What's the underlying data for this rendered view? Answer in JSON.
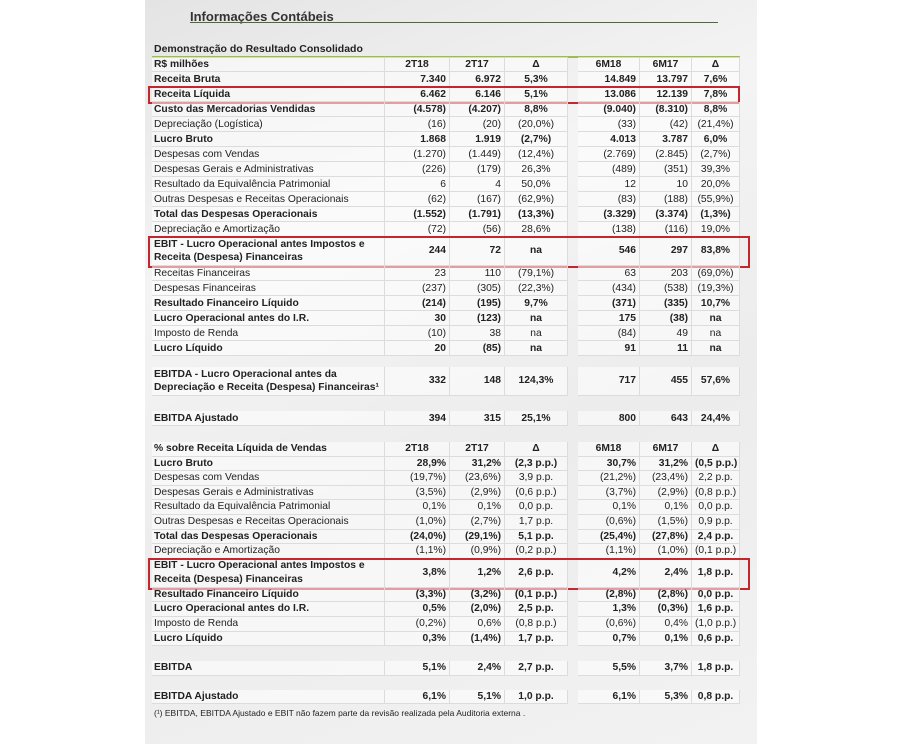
{
  "title": "Informações Contábeis",
  "subtitle": "Demonstração do Resultado Consolidado",
  "colors": {
    "highlight": "#c4262e",
    "accent_line": "#9bbf4a"
  },
  "sections": [
    {
      "header": [
        "R$ milhões",
        "2T18",
        "2T17",
        "Δ",
        "6M18",
        "6M17",
        "Δ"
      ],
      "rows": [
        {
          "label": "Receita Bruta",
          "bold": true,
          "values": [
            "7.340",
            "6.972",
            "5,3%",
            "14.849",
            "13.797",
            "7,6%"
          ]
        },
        {
          "label": "Receita Líquida",
          "bold": true,
          "highlight": true,
          "values": [
            "6.462",
            "6.146",
            "5,1%",
            "13.086",
            "12.139",
            "7,8%"
          ]
        },
        {
          "label": "Custo das Mercadorias Vendidas",
          "bold": true,
          "values": [
            "(4.578)",
            "(4.207)",
            "8,8%",
            "(9.040)",
            "(8.310)",
            "8,8%"
          ]
        },
        {
          "label": "Depreciação (Logística)",
          "values": [
            "(16)",
            "(20)",
            "(20,0%)",
            "(33)",
            "(42)",
            "(21,4%)"
          ]
        },
        {
          "label": "Lucro Bruto",
          "bold": true,
          "values": [
            "1.868",
            "1.919",
            "(2,7%)",
            "4.013",
            "3.787",
            "6,0%"
          ]
        },
        {
          "label": "Despesas com Vendas",
          "values": [
            "(1.270)",
            "(1.449)",
            "(12,4%)",
            "(2.769)",
            "(2.845)",
            "(2,7%)"
          ]
        },
        {
          "label": "Despesas Gerais e Administrativas",
          "values": [
            "(226)",
            "(179)",
            "26,3%",
            "(489)",
            "(351)",
            "39,3%"
          ]
        },
        {
          "label": "Resultado da Equivalência Patrimonial",
          "values": [
            "6",
            "4",
            "50,0%",
            "12",
            "10",
            "20,0%"
          ]
        },
        {
          "label": "Outras Despesas e Receitas Operacionais",
          "values": [
            "(62)",
            "(167)",
            "(62,9%)",
            "(83)",
            "(188)",
            "(55,9%)"
          ]
        },
        {
          "label": "Total das Despesas Operacionais",
          "bold": true,
          "values": [
            "(1.552)",
            "(1.791)",
            "(13,3%)",
            "(3.329)",
            "(3.374)",
            "(1,3%)"
          ]
        },
        {
          "label": "Depreciação e Amortização",
          "values": [
            "(72)",
            "(56)",
            "28,6%",
            "(138)",
            "(116)",
            "19,0%"
          ]
        },
        {
          "label": "EBIT - Lucro Operacional antes Impostos e Receita (Despesa) Financeiras",
          "bold": true,
          "double": true,
          "highlight": true,
          "values": [
            "244",
            "72",
            "na",
            "546",
            "297",
            "83,8%"
          ]
        },
        {
          "label": "Receitas Financeiras",
          "values": [
            "23",
            "110",
            "(79,1%)",
            "63",
            "203",
            "(69,0%)"
          ]
        },
        {
          "label": "Despesas Financeiras",
          "values": [
            "(237)",
            "(305)",
            "(22,3%)",
            "(434)",
            "(538)",
            "(19,3%)"
          ]
        },
        {
          "label": "Resultado Financeiro Líquido",
          "bold": true,
          "values": [
            "(214)",
            "(195)",
            "9,7%",
            "(371)",
            "(335)",
            "10,7%"
          ]
        },
        {
          "label": "Lucro Operacional antes do I.R.",
          "bold": true,
          "values": [
            "30",
            "(123)",
            "na",
            "175",
            "(38)",
            "na"
          ]
        },
        {
          "label": "Imposto de Renda",
          "values": [
            "(10)",
            "38",
            "na",
            "(84)",
            "49",
            "na"
          ]
        },
        {
          "label": "Lucro Líquido",
          "bold": true,
          "values": [
            "20",
            "(85)",
            "na",
            "91",
            "11",
            "na"
          ]
        }
      ]
    },
    {
      "rows": [
        {
          "label": "EBITDA - Lucro Operacional antes da Depreciação e Receita (Despesa) Financeiras¹",
          "bold": true,
          "double": true,
          "values": [
            "332",
            "148",
            "124,3%",
            "717",
            "455",
            "57,6%"
          ]
        }
      ]
    },
    {
      "rows": [
        {
          "label": "EBITDA Ajustado",
          "bold": true,
          "values": [
            "394",
            "315",
            "25,1%",
            "800",
            "643",
            "24,4%"
          ]
        }
      ]
    },
    {
      "pct": true,
      "header": [
        "% sobre Receita Líquida de Vendas",
        "2T18",
        "2T17",
        "Δ",
        "6M18",
        "6M17",
        "Δ"
      ],
      "rows": [
        {
          "label": "Lucro Bruto",
          "bold": true,
          "values": [
            "28,9%",
            "31,2%",
            "(2,3 p.p.)",
            "30,7%",
            "31,2%",
            "(0,5 p.p.)"
          ]
        },
        {
          "label": "Despesas com Vendas",
          "values": [
            "(19,7%)",
            "(23,6%)",
            "3,9 p.p.",
            "(21,2%)",
            "(23,4%)",
            "2,2 p.p."
          ]
        },
        {
          "label": "Despesas Gerais e Administrativas",
          "values": [
            "(3,5%)",
            "(2,9%)",
            "(0,6 p.p.)",
            "(3,7%)",
            "(2,9%)",
            "(0,8 p.p.)"
          ]
        },
        {
          "label": "Resultado da Equivalência Patrimonial",
          "values": [
            "0,1%",
            "0,1%",
            "0,0 p.p.",
            "0,1%",
            "0,1%",
            "0,0 p.p."
          ]
        },
        {
          "label": "Outras Despesas e Receitas Operacionais",
          "values": [
            "(1,0%)",
            "(2,7%)",
            "1,7 p.p.",
            "(0,6%)",
            "(1,5%)",
            "0,9 p.p."
          ]
        },
        {
          "label": "Total das Despesas Operacionais",
          "bold": true,
          "values": [
            "(24,0%)",
            "(29,1%)",
            "5,1 p.p.",
            "(25,4%)",
            "(27,8%)",
            "2,4 p.p."
          ]
        },
        {
          "label": "Depreciação e Amortização",
          "values": [
            "(1,1%)",
            "(0,9%)",
            "(0,2 p.p.)",
            "(1,1%)",
            "(1,0%)",
            "(0,1 p.p.)"
          ]
        },
        {
          "label": "EBIT - Lucro Operacional antes Impostos e Receita (Despesa) Financeiras",
          "bold": true,
          "double": true,
          "highlight": true,
          "values": [
            "3,8%",
            "1,2%",
            "2,6 p.p.",
            "4,2%",
            "2,4%",
            "1,8 p.p."
          ]
        },
        {
          "label": "Resultado Financeiro Líquido",
          "bold": true,
          "values": [
            "(3,3%)",
            "(3,2%)",
            "(0,1 p.p.)",
            "(2,8%)",
            "(2,8%)",
            "0,0 p.p."
          ]
        },
        {
          "label": "Lucro Operacional antes do I.R.",
          "bold": true,
          "values": [
            "0,5%",
            "(2,0%)",
            "2,5 p.p.",
            "1,3%",
            "(0,3%)",
            "1,6 p.p."
          ]
        },
        {
          "label": "Imposto de Renda",
          "values": [
            "(0,2%)",
            "0,6%",
            "(0,8 p.p.)",
            "(0,6%)",
            "0,4%",
            "(1,0 p.p.)"
          ]
        },
        {
          "label": "Lucro Líquido",
          "bold": true,
          "values": [
            "0,3%",
            "(1,4%)",
            "1,7 p.p.",
            "0,7%",
            "0,1%",
            "0,6 p.p."
          ]
        }
      ]
    },
    {
      "pct": true,
      "rows": [
        {
          "label": "EBITDA",
          "bold": true,
          "values": [
            "5,1%",
            "2,4%",
            "2,7 p.p.",
            "5,5%",
            "3,7%",
            "1,8 p.p."
          ]
        }
      ]
    },
    {
      "pct": true,
      "rows": [
        {
          "label": "EBITDA Ajustado",
          "bold": true,
          "values": [
            "6,1%",
            "5,1%",
            "1,0 p.p.",
            "6,1%",
            "5,3%",
            "0,8 p.p."
          ]
        }
      ]
    }
  ],
  "footnote": "(¹) EBITDA, EBITDA Ajustado e EBIT não fazem parte da revisão realizada pela Auditoria externa ."
}
